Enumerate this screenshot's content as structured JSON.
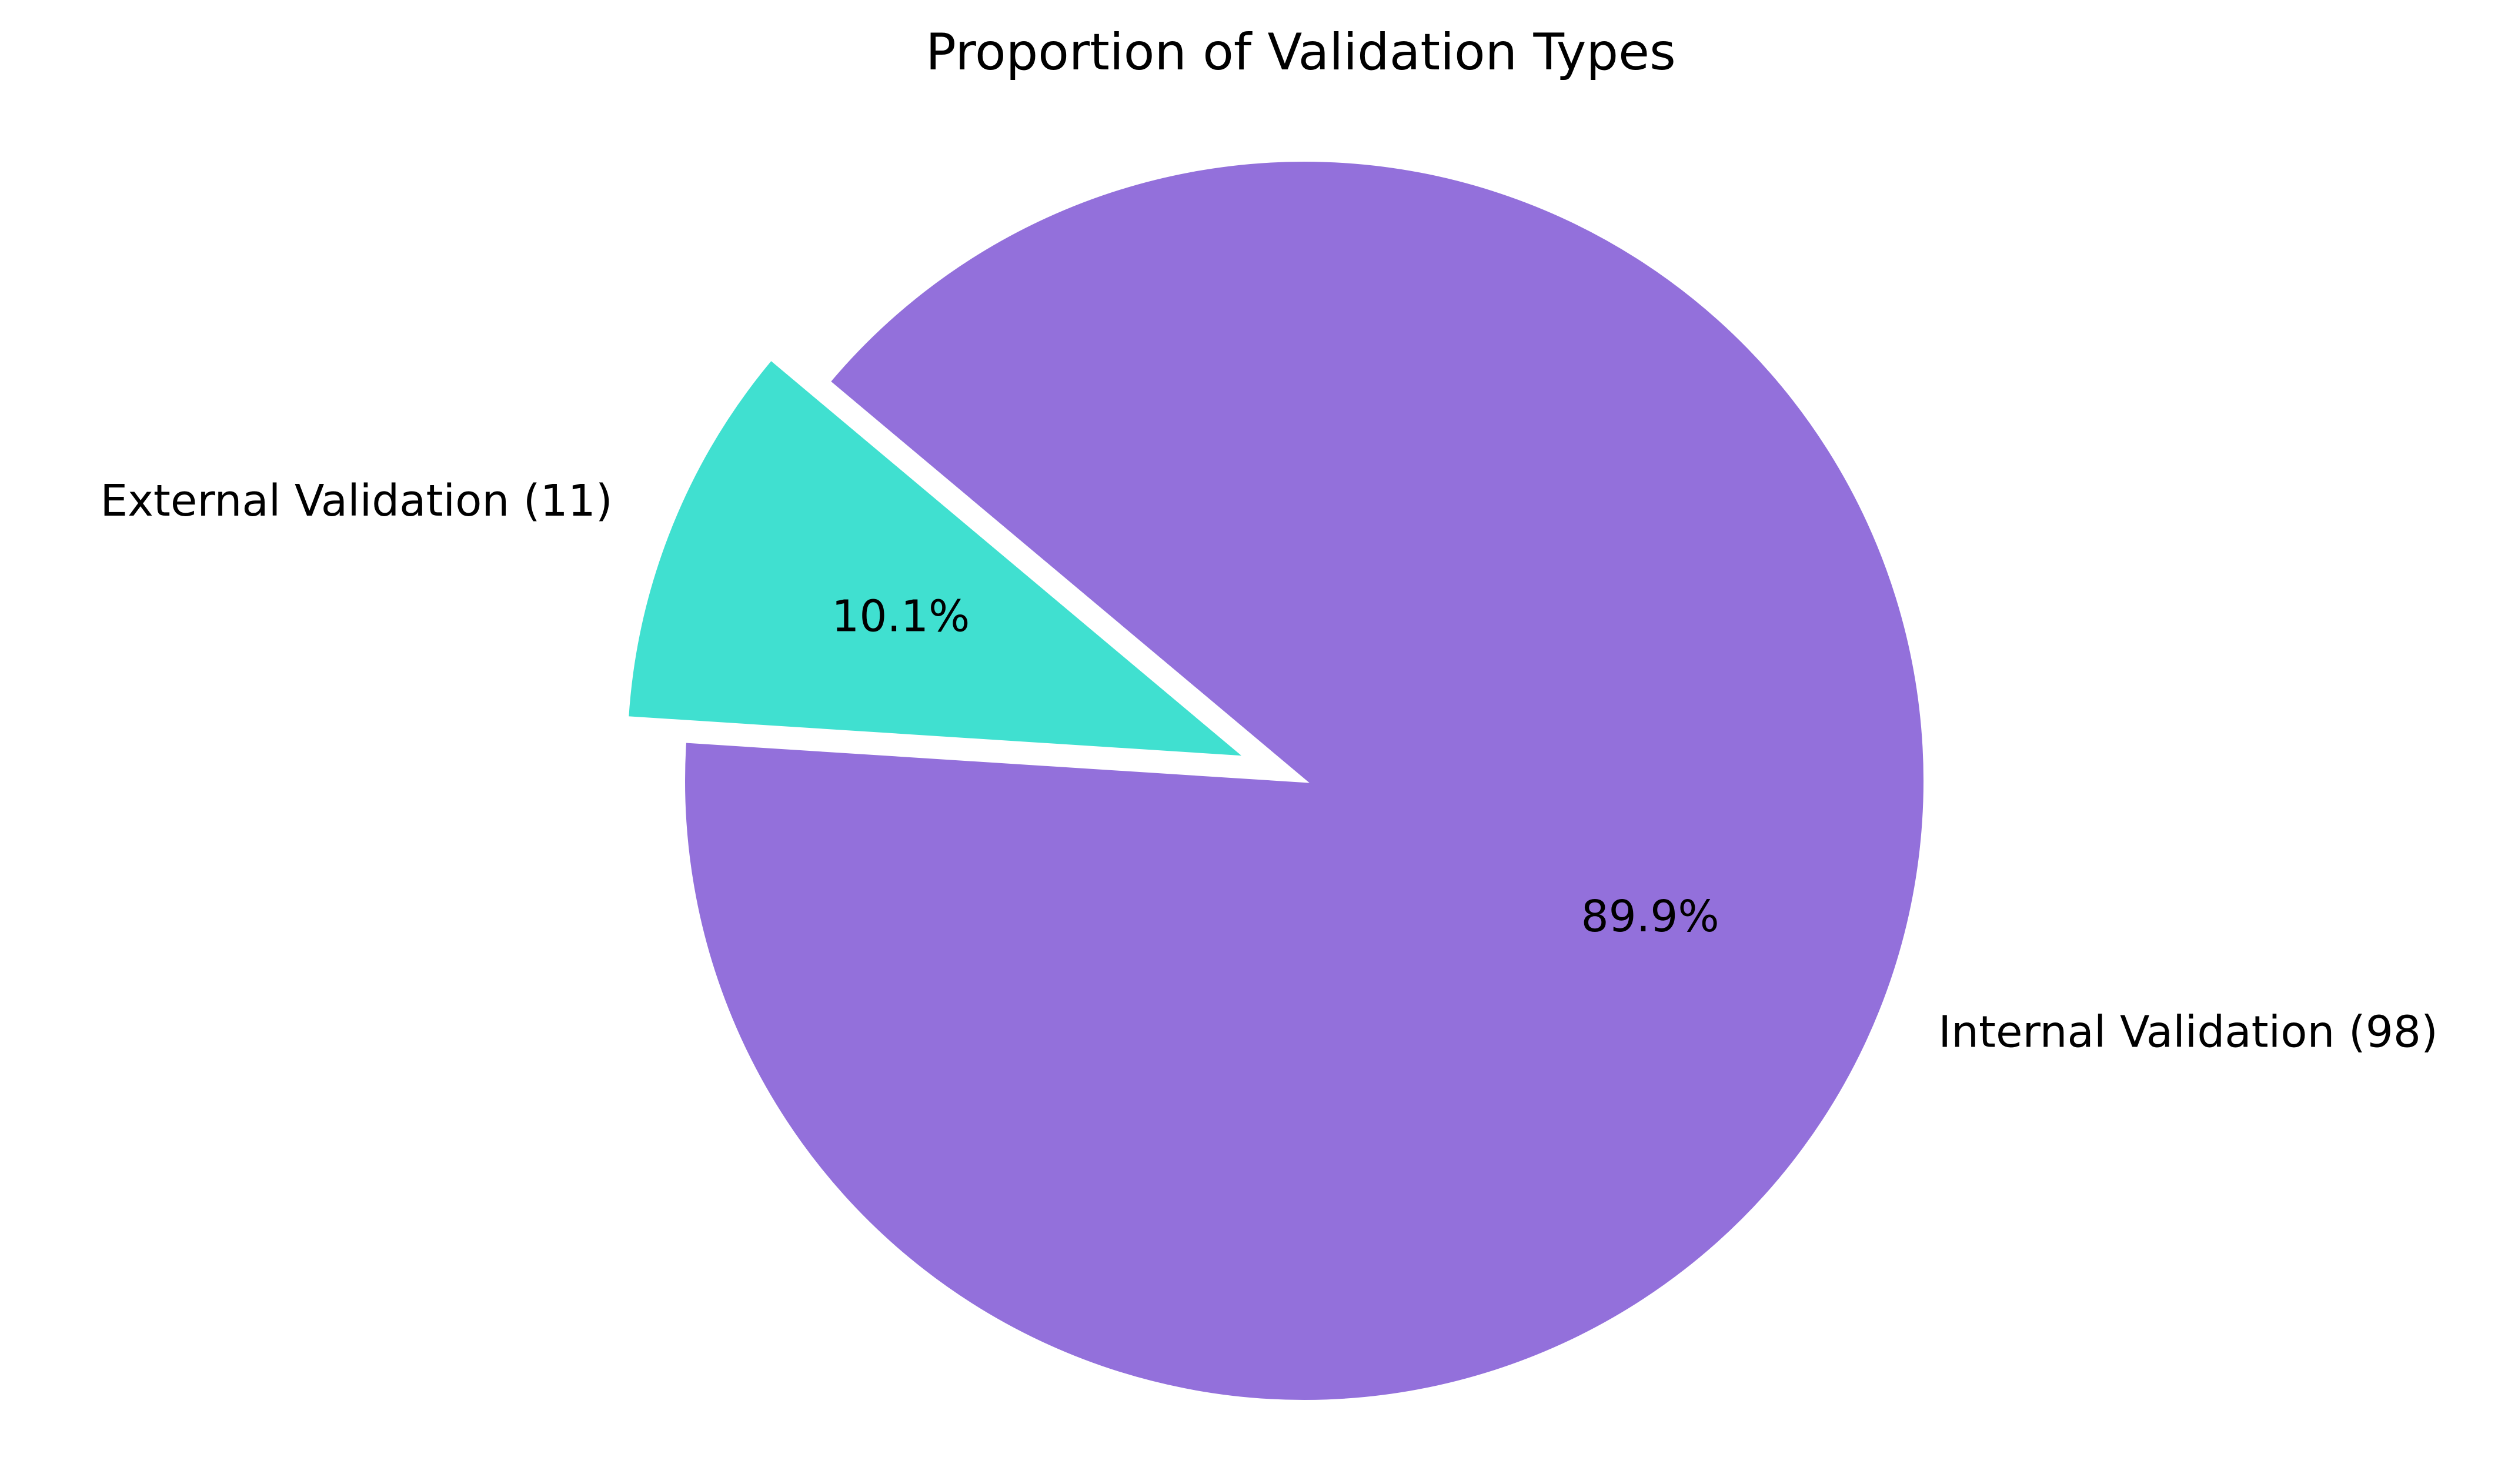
{
  "chart_data": {
    "type": "pie",
    "title": "Proportion of Validation Types",
    "slices": [
      {
        "label": "External Validation (11)",
        "value": 11,
        "percent_label": "10.1%",
        "color": "#40e0d0",
        "exploded": true
      },
      {
        "label": "Internal Validation (98)",
        "value": 98,
        "percent_label": "89.9%",
        "color": "#9370db",
        "exploded": false
      }
    ],
    "start_angle_deg": 140,
    "direction": "counterclockwise",
    "legend": "none"
  }
}
